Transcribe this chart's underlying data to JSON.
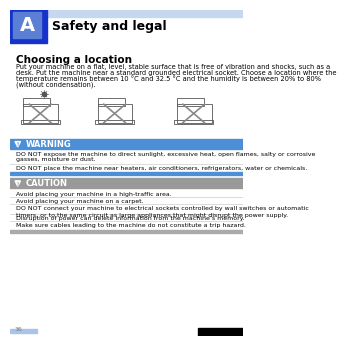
{
  "page_bg": "#ffffff",
  "header_lightblue": "#c5d8f0",
  "header_darkblue": "#1533cc",
  "header_medblue": "#5b7fd4",
  "header_title": "Safety and legal",
  "header_letter": "A",
  "section_title": "Choosing a location",
  "body_text_lines": [
    "Put your machine on a flat, level, stable surface that is free of vibration and shocks, such as a",
    "desk. Put the machine near a standard grounded electrical socket. Choose a location where the",
    "temperature remains between 10 °C and 32.5 °C and the humidity is between 20% to 80%",
    "(without condensation)."
  ],
  "warning_blue": "#4d8fd6",
  "warning_darkblue": "#2255aa",
  "warning_title": "WARNING",
  "warning_lines": [
    "DO NOT expose the machine to direct sunlight, excessive heat, open flames, salty or corrosive",
    "gasses, moisture or dust.",
    "",
    "DO NOT place the machine near heaters, air conditioners, refrigerators, water or chemicals."
  ],
  "caution_gray": "#999999",
  "caution_darkgray": "#666666",
  "caution_title": "CAUTION",
  "caution_lines": [
    "Avoid placing your machine in a high-traffic area.",
    "",
    "Avoid placing your machine on a carpet.",
    "",
    "DO NOT connect your machine to electrical sockets controlled by wall switches or automatic",
    "timers, or to the same circuit as large appliances that might disrupt the power supply.",
    "",
    "Disruption of power can delete information from the machine’s memory.",
    "",
    "Make sure cables leading to the machine do not constitute a trip hazard."
  ],
  "caution_bottom_bar": "#aaaaaa",
  "page_number": "36",
  "footer_blue": "#aac4e8"
}
